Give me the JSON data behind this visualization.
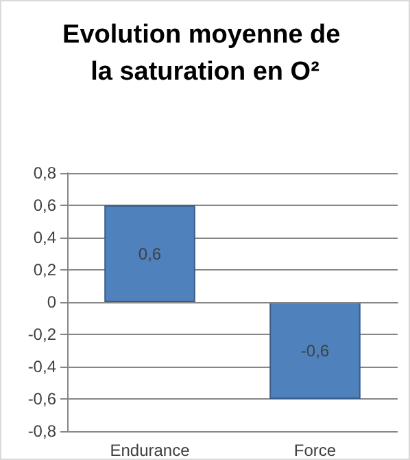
{
  "chart_data": {
    "type": "bar",
    "title": "Evolution moyenne de la saturation en O²",
    "categories": [
      "Endurance",
      "Force"
    ],
    "values": [
      0.6,
      -0.6
    ],
    "color": "#4f81bd",
    "value_labels": [
      "0,6",
      "-0,6"
    ],
    "ylim": [
      -0.8,
      0.8
    ],
    "yticks": [
      {
        "value": -0.8,
        "label": "-0,8"
      },
      {
        "value": -0.6,
        "label": "-0,6"
      },
      {
        "value": -0.4,
        "label": "-0,4"
      },
      {
        "value": -0.2,
        "label": "-0,2"
      },
      0,
      {
        "value": 0.2,
        "label": "0,2"
      },
      {
        "value": 0.4,
        "label": "0,4"
      },
      {
        "value": 0.6,
        "label": "0,6"
      },
      {
        "value": 0.8,
        "label": "0,8"
      }
    ],
    "grid": true
  }
}
